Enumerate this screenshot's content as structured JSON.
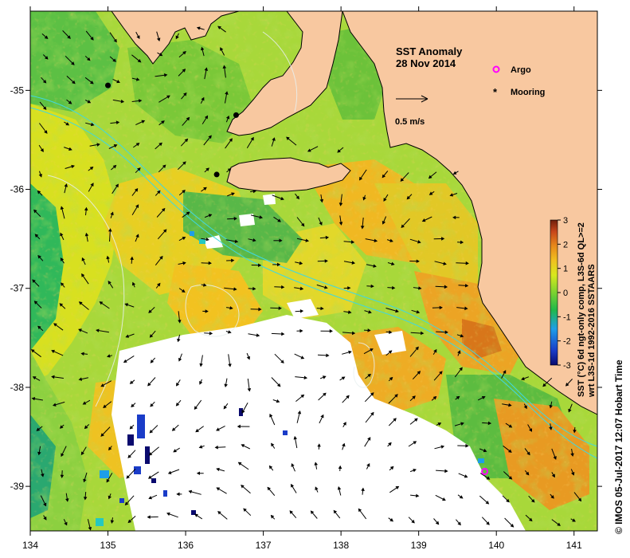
{
  "title": {
    "line1": "SST Anomaly",
    "line2": "28 Nov 2014"
  },
  "legend": {
    "argo": "Argo",
    "mooring": "Mooring",
    "argo_color": "#ff00ff",
    "mooring_color": "#000000"
  },
  "scale_arrow": {
    "label": "0.5 m/s"
  },
  "colorbar": {
    "ticks": [
      "3",
      "2",
      "1",
      "0",
      "-1",
      "-2",
      "-3"
    ],
    "title_line1": "SST (°C) 6d ngt-only comp, L3S-6d QL>=2",
    "title_line2": "wrt L3S-1d 1992-2016 SSTAARS",
    "colors": [
      "#0a0a6e",
      "#1a3cc8",
      "#1e9ee8",
      "#25c8c0",
      "#20b84a",
      "#7cd230",
      "#d8e81e",
      "#f0c020",
      "#e88a1a",
      "#c8461a",
      "#6e1e0a"
    ],
    "land_color": "#f8c8a0"
  },
  "credit": "© IMOS 05-Jul-2017 12:07 Hobart Time",
  "chart_data": {
    "type": "heatmap",
    "variable": "SST Anomaly",
    "date": "28 Nov 2014",
    "x_ticks": [
      "134",
      "135",
      "136",
      "137",
      "138",
      "139",
      "140",
      "141"
    ],
    "y_ticks": [
      "-35",
      "-36",
      "-37",
      "-38",
      "-39"
    ],
    "xlim": [
      134,
      141.3
    ],
    "ylim": [
      -39.45,
      -34.2
    ],
    "color_range": [
      -3,
      3
    ],
    "moorings": [
      {
        "lon": 135.0,
        "lat": -34.95
      },
      {
        "lon": 136.65,
        "lat": -35.25
      },
      {
        "lon": 136.4,
        "lat": -35.85
      }
    ],
    "argo_floats": [
      {
        "lon": 139.85,
        "lat": -38.85
      }
    ]
  }
}
